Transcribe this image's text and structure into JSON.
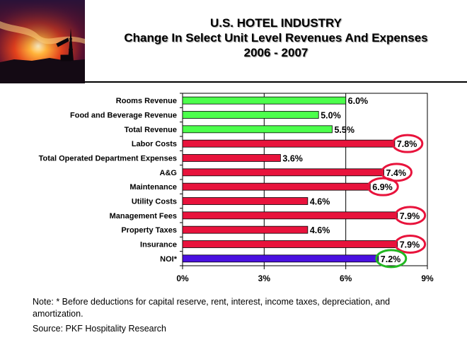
{
  "header": {
    "image": "sunset-derrick-photo",
    "title_lines": [
      "U.S. HOTEL INDUSTRY",
      "Change In Select Unit Level Revenues And Expenses",
      "2006 - 2007"
    ]
  },
  "colors": {
    "revenue": "#4cff4c",
    "expense": "#e8133c",
    "noi": "#4a10e0",
    "highlight_red": "#e8133c",
    "highlight_green": "#22b822"
  },
  "chart_data": {
    "type": "bar",
    "orientation": "horizontal",
    "categories": [
      "Rooms Revenue",
      "Food and Beverage Revenue",
      "Total Revenue",
      "Labor Costs",
      "Total Operated Department Expenses",
      "A&G",
      "Maintenance",
      "Utility Costs",
      "Management Fees",
      "Property Taxes",
      "Insurance",
      "NOI*"
    ],
    "values": [
      6.0,
      5.0,
      5.5,
      7.8,
      3.6,
      7.4,
      6.9,
      4.6,
      7.9,
      4.6,
      7.9,
      7.2
    ],
    "data_labels": [
      "6.0%",
      "5.0%",
      "5.5%",
      "7.8%",
      "3.6%",
      "7.4%",
      "6.9%",
      "4.6%",
      "7.9%",
      "4.6%",
      "7.9%",
      "7.2%"
    ],
    "bar_groups": [
      "revenue",
      "revenue",
      "revenue",
      "expense",
      "expense",
      "expense",
      "expense",
      "expense",
      "expense",
      "expense",
      "expense",
      "noi"
    ],
    "highlighted": [
      "none",
      "none",
      "none",
      "red",
      "none",
      "red",
      "red",
      "none",
      "red",
      "none",
      "red",
      "green"
    ],
    "xlim": [
      0,
      9
    ],
    "xticks": [
      0,
      3,
      6,
      9
    ],
    "xtick_labels": [
      "0%",
      "3%",
      "6%",
      "9%"
    ],
    "grid": "vertical",
    "legend": "none"
  },
  "footer": {
    "note": "Note: * Before deductions for capital reserve, rent, interest, income taxes, depreciation, and amortization.",
    "source": "Source: PKF Hospitality Research"
  }
}
